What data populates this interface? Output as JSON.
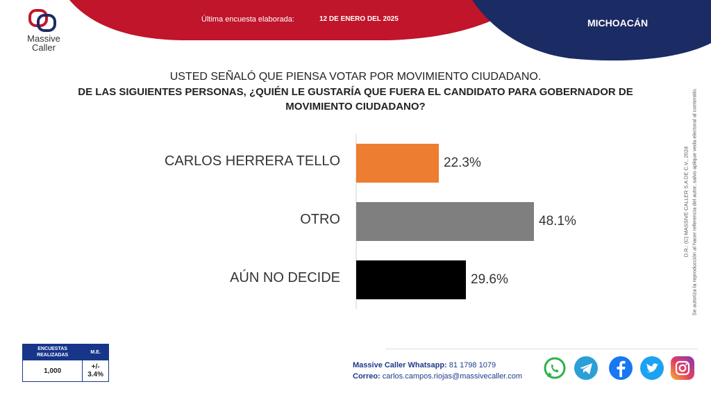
{
  "header": {
    "brand_line1": "Massive",
    "brand_line2": "Caller",
    "survey_label": "Última encuesta elaborada:",
    "survey_date": "12 DE ENERO DEL 2025",
    "region": "MICHOACÁN"
  },
  "question": {
    "line1": "USTED SEÑALÓ QUE PIENSA VOTAR POR MOVIMIENTO CIUDADANO.",
    "line2": "DE LAS SIGUIENTES PERSONAS, ¿QUIÉN LE GUSTARÍA QUE FUERA EL CANDIDATO PARA GOBERNADOR DE MOVIMIENTO CIUDADANO?"
  },
  "chart_data": {
    "type": "bar",
    "orientation": "horizontal",
    "categories": [
      "CARLOS HERRERA TELLO",
      "OTRO",
      "AÚN NO DECIDE"
    ],
    "values": [
      22.3,
      48.1,
      29.6
    ],
    "value_labels": [
      "22.3%",
      "48.1%",
      "29.6%"
    ],
    "colors": [
      "#ed7d31",
      "#7f7f7f",
      "#000000"
    ],
    "xlim": [
      0,
      100
    ]
  },
  "copyright": {
    "line1": "D.R.: (C) MASSIVE CALLER S.A DE C.V., 2024",
    "line2": "Se autoriza la reproducción al hacer referencia del autor, salvo aplique veda electoral al contenido."
  },
  "stats": {
    "col1_header": "ENCUESTAS REALIZADAS",
    "col2_header": "M.E.",
    "col1_value": "1,000",
    "col2_value": "+/- 3.4%"
  },
  "contact": {
    "whatsapp_label": "Massive Caller Whatsapp:",
    "whatsapp_value": "81 1798 1079",
    "email_label": "Correo:",
    "email_value": "carlos.campos.riojas@massivecaller.com"
  },
  "social_icons": [
    "whatsapp-icon",
    "telegram-icon",
    "facebook-icon",
    "twitter-icon",
    "instagram-icon"
  ],
  "colors": {
    "red": "#c0152a",
    "navy": "#1b2b63"
  }
}
